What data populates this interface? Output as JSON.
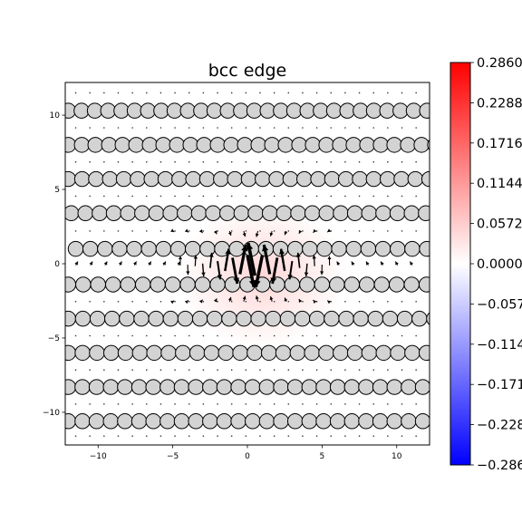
{
  "chart_data": {
    "type": "heatmap",
    "title": "bcc edge",
    "xlabel": "",
    "ylabel": "",
    "xlim": [
      -12.2,
      12.2
    ],
    "ylim": [
      -12.2,
      12.2
    ],
    "x_ticks": [
      -10,
      -5,
      0,
      5,
      10
    ],
    "y_ticks": [
      10,
      5,
      0,
      -5,
      -10
    ],
    "x_tick_labels": [
      "−10",
      "−5",
      "0",
      "5",
      "10"
    ],
    "y_tick_labels": [
      "10",
      "5",
      "0",
      "−5",
      "−10"
    ],
    "field": {
      "name": "",
      "peak_value": 0.08,
      "center": [
        1.0,
        -0.8
      ],
      "sigma": [
        2.6,
        2.2
      ],
      "cmap": "bwr"
    },
    "atoms": {
      "rows": [
        {
          "y": 10.3,
          "x_start": -12.0,
          "x_spacing": 0.89
        },
        {
          "y": 8.0,
          "x_start": -12.0,
          "x_spacing": 0.91
        },
        {
          "y": 5.7,
          "x_start": -12.0,
          "x_spacing": 0.93
        },
        {
          "y": 3.4,
          "x_start": -11.8,
          "x_spacing": 0.95
        },
        {
          "y": 1.0,
          "x_start": -11.5,
          "x_spacing": 0.98
        },
        {
          "y": -1.4,
          "x_start": -12.0,
          "x_spacing": 1.0
        },
        {
          "y": -3.7,
          "x_start": -12.0,
          "x_spacing": 0.98
        },
        {
          "y": -6.0,
          "x_start": -12.0,
          "x_spacing": 0.96
        },
        {
          "y": -8.3,
          "x_start": -12.0,
          "x_spacing": 0.95
        },
        {
          "y": -10.6,
          "x_start": -12.0,
          "x_spacing": 0.95
        }
      ],
      "fill": "#d3d3d3",
      "edge": "#000000"
    },
    "displacements": {
      "note": "",
      "core_y": -0.1,
      "core_x_range": [
        -4.5,
        5.5
      ]
    },
    "colorbar": {
      "vmin": -0.286,
      "vmax": 0.286,
      "tick_labels": [
        "0.2860",
        "0.2288",
        "0.1716",
        "0.1144",
        "0.0572",
        "0.0000",
        "−0.0572",
        "−0.1144",
        "−0.1716",
        "−0.2288",
        "−0.2860"
      ],
      "tick_values": [
        0.286,
        0.2288,
        0.1716,
        0.1144,
        0.0572,
        0.0,
        -0.0572,
        -0.1144,
        -0.1716,
        -0.2288,
        -0.286
      ],
      "colors": {
        "low": "#0000ff",
        "mid": "#ffffff",
        "high": "#ff0000"
      }
    }
  }
}
